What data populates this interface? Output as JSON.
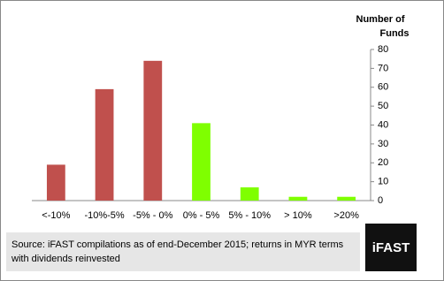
{
  "chart_data": {
    "type": "bar",
    "ylabel": [
      "Number of",
      "Funds"
    ],
    "categories": [
      "<-10%",
      "-10%-5%",
      "-5% - 0%",
      "0% - 5%",
      "5% - 10%",
      "> 10%",
      ">20%"
    ],
    "values": [
      19,
      59,
      74,
      41,
      7,
      2,
      2
    ],
    "colors": [
      "#c0504d",
      "#c0504d",
      "#c0504d",
      "#7fff00",
      "#7fff00",
      "#7fff00",
      "#7fff00"
    ],
    "ylim": [
      0,
      80
    ],
    "yticks": [
      0,
      10,
      20,
      30,
      40,
      50,
      60,
      70,
      80
    ],
    "y_axis_side": "right"
  },
  "footer": {
    "source": "Source: iFAST compilations as of end-December 2015; returns in MYR terms with dividends reinvested",
    "logo": "iFAST"
  }
}
